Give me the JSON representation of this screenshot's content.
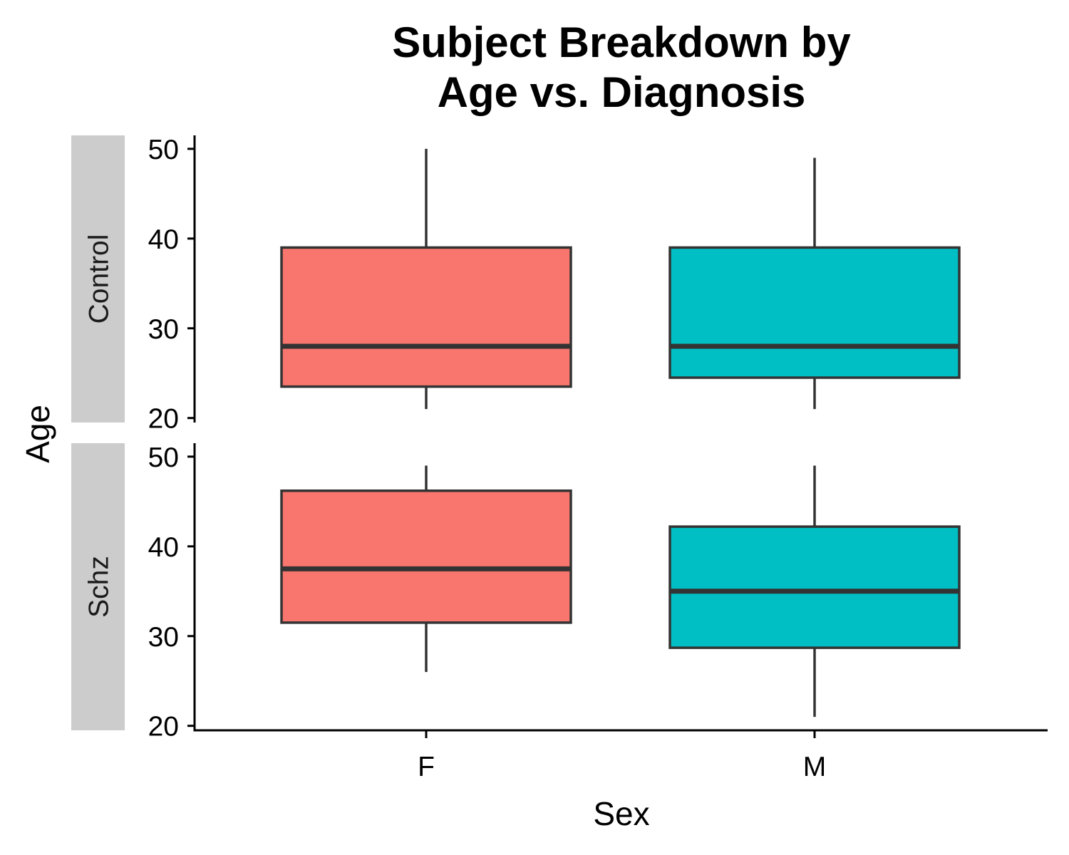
{
  "chart_data": {
    "type": "boxplot",
    "title_lines": [
      "Subject Breakdown by",
      "Age vs. Diagnosis"
    ],
    "xlabel": "Sex",
    "ylabel": "Age",
    "categories": [
      "F",
      "M"
    ],
    "colors": {
      "F": "#F8766D",
      "M": "#00BFC4",
      "box_stroke": "#333333",
      "strip_fill": "#CCCCCC",
      "axis": "#000000"
    },
    "ylim": [
      19.5,
      51.5
    ],
    "y_ticks": [
      20,
      30,
      40,
      50
    ],
    "y_tick_labels": [
      "20",
      "30",
      "40",
      "50"
    ],
    "grid": false,
    "legend": "none",
    "facets": [
      {
        "label": "Control",
        "boxes": [
          {
            "category": "F",
            "whisker_low": 21,
            "q1": 23.5,
            "median": 28,
            "q3": 39,
            "whisker_high": 50
          },
          {
            "category": "M",
            "whisker_low": 21,
            "q1": 24.5,
            "median": 28,
            "q3": 39,
            "whisker_high": 49
          }
        ]
      },
      {
        "label": "Schz",
        "boxes": [
          {
            "category": "F",
            "whisker_low": 26,
            "q1": 31.5,
            "median": 37.5,
            "q3": 46.2,
            "whisker_high": 49
          },
          {
            "category": "M",
            "whisker_low": 21,
            "q1": 28.7,
            "median": 35,
            "q3": 42.2,
            "whisker_high": 49
          }
        ]
      }
    ]
  }
}
